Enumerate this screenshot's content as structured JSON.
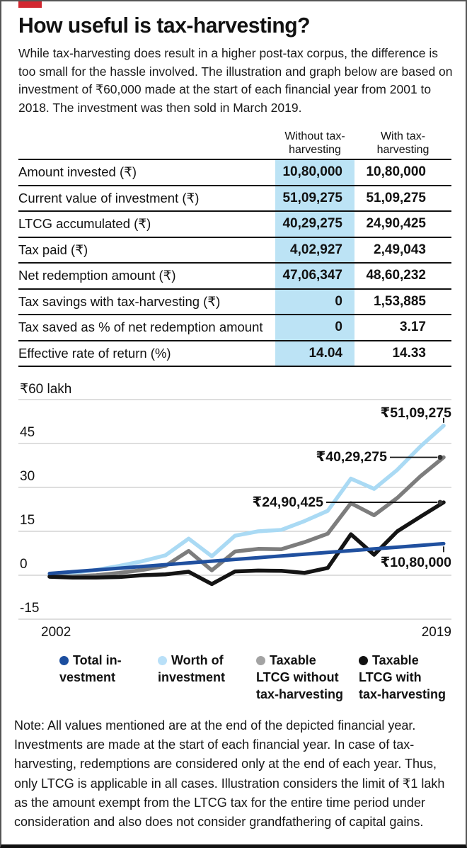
{
  "accent_color": "#d22730",
  "title": "How useful is tax-harvesting?",
  "intro": "While tax-harvesting does result in a higher post-tax corpus, the difference is too small for the hassle involved. The illustration and graph below are based on investment of ₹60,000 made at the start of each financial year from 2001 to 2018. The investment was then sold in March 2019.",
  "table": {
    "highlight_color": "#bce3f5",
    "columns": [
      {
        "line1": "Without tax-",
        "line2": "harvesting"
      },
      {
        "line1": "With tax-",
        "line2": "harvesting"
      }
    ],
    "rows": [
      {
        "label": "Amount invested (₹)",
        "without": "10,80,000",
        "with": "10,80,000"
      },
      {
        "label": "Current value of investment (₹)",
        "without": "51,09,275",
        "with": "51,09,275"
      },
      {
        "label": "LTCG accumulated (₹)",
        "without": "40,29,275",
        "with": "24,90,425"
      },
      {
        "label": "Tax paid (₹)",
        "without": "4,02,927",
        "with": "2,49,043"
      },
      {
        "label": "Net redemption amount (₹)",
        "without": "47,06,347",
        "with": "48,60,232"
      },
      {
        "label": "Tax savings with tax-harvesting (₹)",
        "without": "0",
        "with": "1,53,885"
      },
      {
        "label": "Tax saved as % of net redemption amount",
        "without": "0",
        "with": "3.17"
      },
      {
        "label": "Effective rate of return (%)",
        "without": "14.04",
        "with": "14.33"
      }
    ]
  },
  "chart_data": {
    "type": "line",
    "title": "",
    "unit_note": "values in ₹ lakh",
    "x": [
      2002,
      2003,
      2004,
      2005,
      2006,
      2007,
      2008,
      2009,
      2010,
      2011,
      2012,
      2013,
      2014,
      2015,
      2016,
      2017,
      2018,
      2019
    ],
    "xtick_labels": [
      "2002",
      "2019"
    ],
    "ylim": [
      -15,
      60
    ],
    "yticks": [
      60,
      45,
      30,
      15,
      0,
      -15
    ],
    "ytick_labels": [
      "₹60 lakh",
      "45",
      "30",
      "15",
      "0",
      "-15"
    ],
    "grid": true,
    "gridline_color": "#c9c9c9",
    "series": [
      {
        "name": "Total investment",
        "color": "#20509f",
        "values": [
          0.6,
          1.2,
          1.8,
          2.4,
          3.0,
          3.6,
          4.2,
          4.8,
          5.4,
          6.0,
          6.6,
          7.2,
          7.8,
          8.4,
          9.0,
          9.6,
          10.2,
          10.8
        ]
      },
      {
        "name": "Worth of investment",
        "color": "#aadaf4",
        "values": [
          0.2,
          0.8,
          1.8,
          3.2,
          4.8,
          6.8,
          12.5,
          6.5,
          13.5,
          15.0,
          15.5,
          18.5,
          22.0,
          33.0,
          29.5,
          36.0,
          44.0,
          51.09
        ]
      },
      {
        "name": "Taxable LTCG without tax-harvesting",
        "color": "#7d7d7d",
        "values": [
          -0.4,
          -0.4,
          0.0,
          0.8,
          1.8,
          3.2,
          8.3,
          1.7,
          8.1,
          9.0,
          8.9,
          11.3,
          14.2,
          24.6,
          20.5,
          26.4,
          33.8,
          40.29
        ]
      },
      {
        "name": "Taxable LTCG with tax-harvesting",
        "color": "#141414",
        "values": [
          -0.5,
          -0.8,
          -0.8,
          -0.6,
          0.0,
          0.3,
          1.2,
          -3.0,
          1.3,
          1.6,
          1.5,
          0.8,
          2.5,
          14.0,
          7.0,
          15.0,
          20.0,
          24.9
        ]
      }
    ],
    "annotations": [
      {
        "series": "Worth of investment",
        "text": "₹51,09,275"
      },
      {
        "series": "Taxable LTCG without tax-harvesting",
        "text": "₹40,29,275"
      },
      {
        "series": "Taxable LTCG with tax-harvesting",
        "text": "₹24,90,425"
      },
      {
        "series": "Total investment",
        "text": "₹10,80,000"
      }
    ],
    "legend_position": "bottom",
    "legend": [
      {
        "label": "Total in-\nvestment",
        "color": "#1c4e9f"
      },
      {
        "label": "Worth of\ninvestment",
        "color": "#b9e0f8"
      },
      {
        "label": "Taxable\nLTCG without\ntax-harvesting",
        "color": "#a3a3a3"
      },
      {
        "label": "Taxable\nLTCG with\ntax-harvesting",
        "color": "#111111"
      }
    ]
  },
  "note": "Note: All values mentioned are at the end of the depicted financial year. Investments are made at the start of each financial year. In case of tax-harvesting, redemptions are considered only at the end of each year. Thus, only LTCG is applicable in all cases. Illustration considers the limit of ₹1 lakh as the amount exempt from the LTCG tax for the entire time period under consideration and also does not consider grandfathering of capital gains."
}
